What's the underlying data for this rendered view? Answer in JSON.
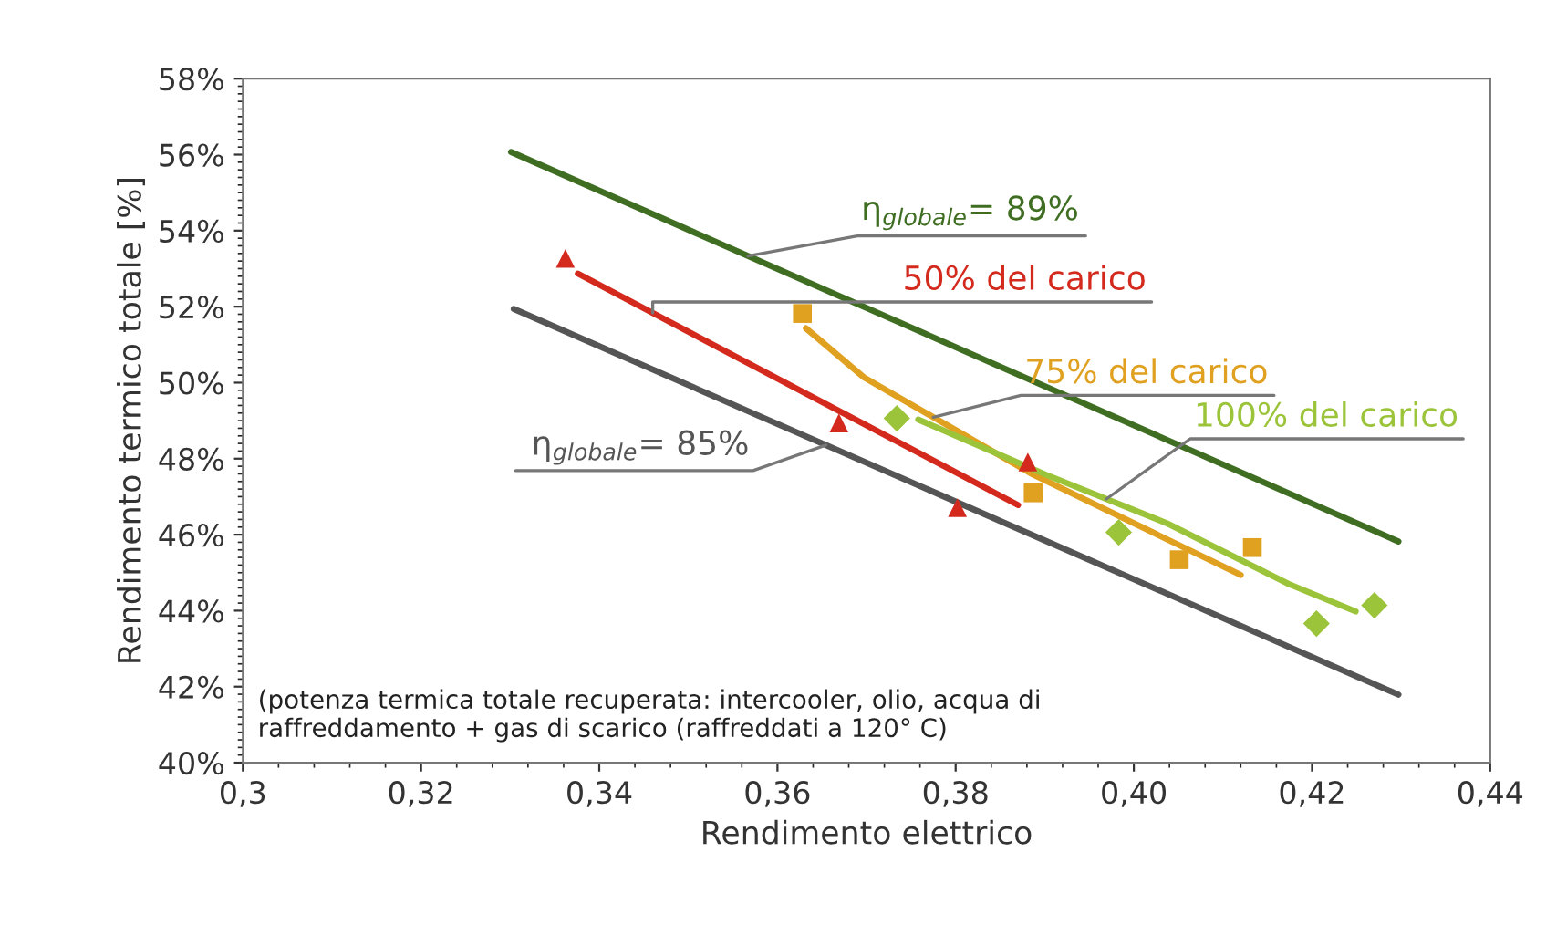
{
  "chart_data": {
    "type": "line",
    "xlabel": "Rendimento elettrico",
    "ylabel": "Rendimento termico totale [%]",
    "xlim": [
      0.3,
      0.44
    ],
    "xticks": [
      {
        "value": 0.3,
        "label": "0,3"
      },
      {
        "value": 0.32,
        "label": "0,32"
      },
      {
        "value": 0.34,
        "label": "0,34"
      },
      {
        "value": 0.36,
        "label": "0,36"
      },
      {
        "value": 0.38,
        "label": "0,38"
      },
      {
        "value": 0.4,
        "label": "0,40"
      },
      {
        "value": 0.42,
        "label": "0,42"
      },
      {
        "value": 0.44,
        "label": "0,44"
      }
    ],
    "ylim": [
      40,
      58
    ],
    "yticks": [
      {
        "value": 40,
        "label": "40%"
      },
      {
        "value": 42,
        "label": "42%"
      },
      {
        "value": 44,
        "label": "44%"
      },
      {
        "value": 46,
        "label": "46%"
      },
      {
        "value": 48,
        "label": "48%"
      },
      {
        "value": 50,
        "label": "50%"
      },
      {
        "value": 52,
        "label": "52%"
      },
      {
        "value": 54,
        "label": "54%"
      },
      {
        "value": 56,
        "label": "56%"
      },
      {
        "value": 58,
        "label": "58%"
      }
    ],
    "grid": false,
    "legend": false,
    "line_style": "solid",
    "series": [
      {
        "name": "η$_{globale}$= 89%",
        "marker": "none",
        "color": "#3f6e22",
        "x": [
          0.3301,
          0.4297
        ],
        "values": [
          56.07,
          45.82
        ]
      },
      {
        "name": "η$_{globale}$= 85%",
        "marker": "none",
        "color": "#555555",
        "x": [
          0.3304,
          0.4297
        ],
        "values": [
          51.94,
          41.79
        ]
      },
      {
        "name": "50% del carico",
        "marker": "none",
        "color": "#d42a1e",
        "x": [
          0.3376,
          0.387
        ],
        "values": [
          52.87,
          46.78
        ]
      },
      {
        "type": "scatter",
        "marker": "triangle",
        "color": "#d42a1e",
        "x": [
          0.3362,
          0.3669,
          0.3802,
          0.3881
        ],
        "values": [
          53.27,
          48.94,
          46.71,
          47.91
        ]
      },
      {
        "name": "75% del carico",
        "marker": "none",
        "color": "#e0a020",
        "x": [
          0.3632,
          0.3697,
          0.3887,
          0.412
        ],
        "values": [
          51.43,
          50.14,
          47.58,
          44.94
        ]
      },
      {
        "type": "scatter",
        "marker": "square",
        "color": "#e0a020",
        "x": [
          0.3628,
          0.3887,
          0.4051,
          0.4133
        ],
        "values": [
          51.82,
          47.1,
          45.34,
          45.66
        ]
      },
      {
        "name": "100% del carico",
        "marker": "none",
        "color": "#9cc43a",
        "x": [
          0.3758,
          0.3901,
          0.4037,
          0.4174,
          0.4249
        ],
        "values": [
          49.03,
          47.58,
          46.3,
          44.7,
          43.98
        ]
      },
      {
        "type": "scatter",
        "marker": "diamond",
        "color": "#9cc43a",
        "x": [
          0.3734,
          0.3983,
          0.4205,
          0.427
        ],
        "values": [
          49.06,
          46.06,
          43.66,
          44.14
        ]
      }
    ],
    "annotations": [
      "(potenza termica totale recuperata: intercooler, olio, acqua di\nraffreddamento + gas di scarico (raffreddati a 120° C)"
    ]
  }
}
